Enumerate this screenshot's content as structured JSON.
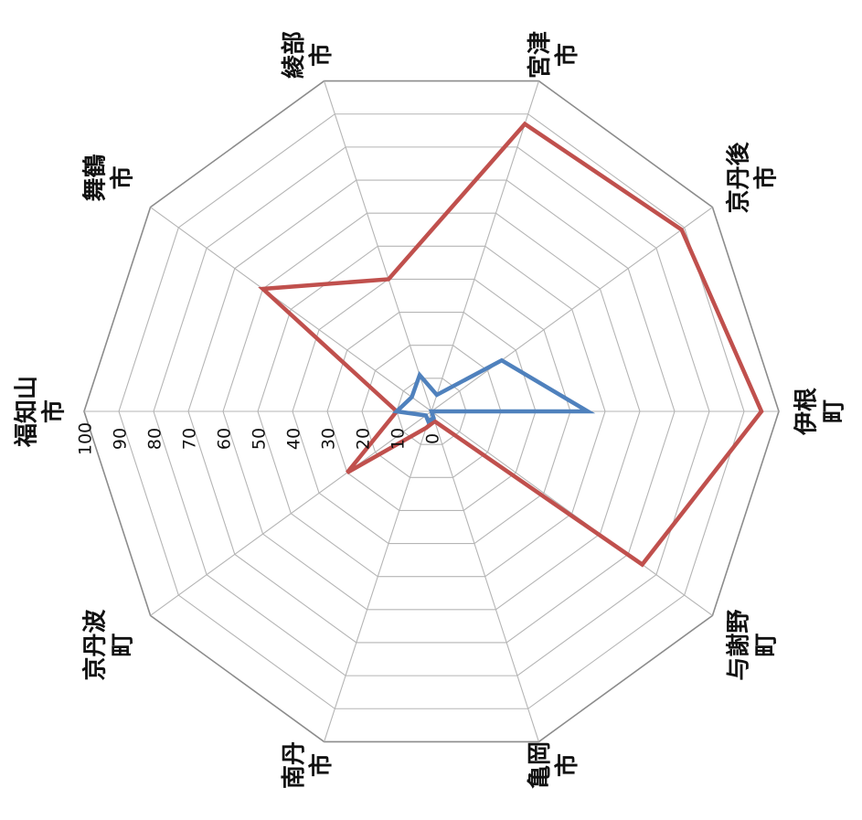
{
  "chart_data": {
    "type": "radar",
    "title": "",
    "orientation": "rotated-90-clockwise",
    "r_ticks": [
      "0",
      "10",
      "20",
      "30",
      "40",
      "50",
      "60",
      "70",
      "80",
      "90",
      "100"
    ],
    "r_range": [
      0,
      100
    ],
    "categories": [
      [
        "福知山",
        "市"
      ],
      [
        "舞鶴",
        "市"
      ],
      [
        "綾部",
        "市"
      ],
      [
        "宮津",
        "市"
      ],
      [
        "京丹後",
        "市"
      ],
      [
        "伊根",
        "町"
      ],
      [
        "与謝野",
        "町"
      ],
      [
        "亀岡",
        "市"
      ],
      [
        "南丹",
        "市"
      ],
      [
        "京丹波",
        "町"
      ]
    ],
    "series": [
      {
        "values": [
          10,
          60,
          40,
          87,
          89,
          95,
          75,
          3,
          5,
          30
        ],
        "color": "#c0504d"
      },
      {
        "values": [
          10,
          7,
          11,
          5,
          25,
          45,
          0,
          2,
          3,
          2
        ],
        "color": "#4f81bd"
      }
    ],
    "grid": true
  }
}
